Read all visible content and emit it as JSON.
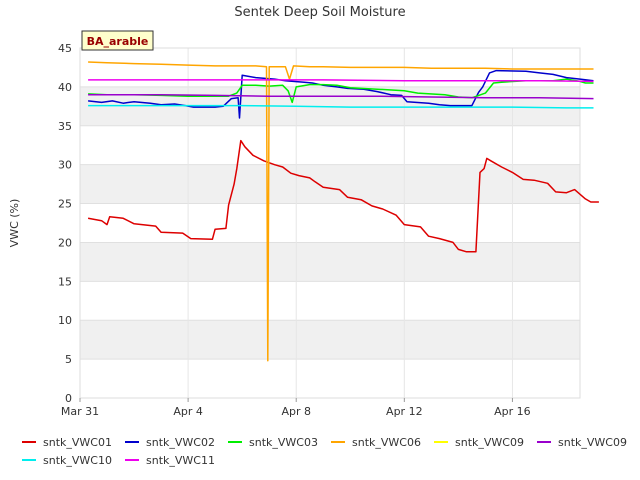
{
  "chart_data": {
    "type": "line",
    "title": "Sentek Deep Soil Moisture",
    "ylabel": "VWC (%)",
    "xlabel": "",
    "site_label": "BA_arable",
    "ylim": [
      0,
      45
    ],
    "yticks": [
      0,
      5,
      10,
      15,
      20,
      25,
      30,
      35,
      40,
      45
    ],
    "xlim": [
      0,
      18.5
    ],
    "xticks": [
      {
        "x": 0,
        "label": "Mar 31"
      },
      {
        "x": 4,
        "label": "Apr 4"
      },
      {
        "x": 8,
        "label": "Apr 8"
      },
      {
        "x": 12,
        "label": "Apr 12"
      },
      {
        "x": 16,
        "label": "Apr 16"
      }
    ],
    "x_unit_note": "days since Mar 31",
    "grid": true,
    "legend_position": "bottom",
    "series": [
      {
        "name": "sntk_VWC01",
        "color": "#dd0000",
        "points": [
          [
            0.3,
            23.1
          ],
          [
            0.8,
            22.8
          ],
          [
            1.0,
            22.3
          ],
          [
            1.1,
            23.3
          ],
          [
            1.6,
            23.1
          ],
          [
            2.0,
            22.4
          ],
          [
            2.8,
            22.1
          ],
          [
            3.0,
            21.3
          ],
          [
            3.8,
            21.2
          ],
          [
            4.1,
            20.5
          ],
          [
            4.9,
            20.4
          ],
          [
            5.0,
            21.7
          ],
          [
            5.4,
            21.8
          ],
          [
            5.5,
            24.8
          ],
          [
            5.7,
            27.5
          ],
          [
            5.8,
            29.5
          ],
          [
            5.95,
            33.1
          ],
          [
            6.1,
            32.3
          ],
          [
            6.4,
            31.2
          ],
          [
            6.8,
            30.5
          ],
          [
            7.2,
            30.0
          ],
          [
            7.5,
            29.7
          ],
          [
            7.8,
            28.9
          ],
          [
            8.1,
            28.6
          ],
          [
            8.5,
            28.3
          ],
          [
            8.7,
            27.8
          ],
          [
            9.0,
            27.1
          ],
          [
            9.6,
            26.8
          ],
          [
            9.9,
            25.8
          ],
          [
            10.4,
            25.5
          ],
          [
            10.8,
            24.7
          ],
          [
            11.2,
            24.3
          ],
          [
            11.7,
            23.5
          ],
          [
            12.0,
            22.3
          ],
          [
            12.6,
            22.0
          ],
          [
            12.9,
            20.8
          ],
          [
            13.3,
            20.5
          ],
          [
            13.8,
            20.0
          ],
          [
            14.0,
            19.1
          ],
          [
            14.3,
            18.8
          ],
          [
            14.65,
            18.8
          ],
          [
            14.8,
            29.0
          ],
          [
            14.95,
            29.5
          ],
          [
            15.05,
            30.8
          ],
          [
            15.2,
            30.5
          ],
          [
            15.6,
            29.7
          ],
          [
            16.0,
            29.0
          ],
          [
            16.4,
            28.1
          ],
          [
            16.8,
            28.0
          ],
          [
            17.3,
            27.6
          ],
          [
            17.6,
            26.5
          ],
          [
            18.0,
            26.4
          ],
          [
            18.3,
            26.8
          ],
          [
            18.7,
            25.6
          ],
          [
            18.9,
            25.2
          ],
          [
            19.2,
            25.2
          ]
        ]
      },
      {
        "name": "sntk_VWC02",
        "color": "#0000cc",
        "points": [
          [
            0.3,
            38.2
          ],
          [
            0.8,
            38.0
          ],
          [
            1.2,
            38.2
          ],
          [
            1.6,
            37.9
          ],
          [
            2.0,
            38.1
          ],
          [
            2.6,
            37.9
          ],
          [
            3.0,
            37.7
          ],
          [
            3.5,
            37.8
          ],
          [
            3.9,
            37.6
          ],
          [
            4.2,
            37.4
          ],
          [
            5.0,
            37.4
          ],
          [
            5.3,
            37.5
          ],
          [
            5.6,
            38.5
          ],
          [
            5.85,
            38.6
          ],
          [
            5.9,
            36.0
          ],
          [
            6.0,
            41.5
          ],
          [
            6.5,
            41.2
          ],
          [
            7.2,
            41.0
          ],
          [
            7.6,
            40.8
          ],
          [
            8.3,
            40.6
          ],
          [
            8.6,
            40.5
          ],
          [
            9.0,
            40.2
          ],
          [
            9.5,
            40.0
          ],
          [
            9.9,
            39.8
          ],
          [
            10.5,
            39.7
          ],
          [
            11.0,
            39.4
          ],
          [
            11.5,
            39.0
          ],
          [
            11.9,
            38.9
          ],
          [
            12.1,
            38.1
          ],
          [
            12.9,
            37.9
          ],
          [
            13.3,
            37.7
          ],
          [
            13.7,
            37.6
          ],
          [
            14.5,
            37.6
          ],
          [
            14.75,
            39.3
          ],
          [
            14.9,
            40.0
          ],
          [
            15.15,
            41.8
          ],
          [
            15.4,
            42.1
          ],
          [
            16.5,
            42.0
          ],
          [
            17.0,
            41.8
          ],
          [
            17.5,
            41.6
          ],
          [
            18.0,
            41.2
          ],
          [
            18.5,
            41.0
          ],
          [
            19.0,
            40.8
          ]
        ]
      },
      {
        "name": "sntk_VWC03",
        "color": "#00ee00",
        "points": [
          [
            0.3,
            39.1
          ],
          [
            1.0,
            39.0
          ],
          [
            2.0,
            39.0
          ],
          [
            3.0,
            38.9
          ],
          [
            4.0,
            38.8
          ],
          [
            5.5,
            38.8
          ],
          [
            5.8,
            39.2
          ],
          [
            6.0,
            40.2
          ],
          [
            6.5,
            40.2
          ],
          [
            7.0,
            40.1
          ],
          [
            7.5,
            40.2
          ],
          [
            7.7,
            39.5
          ],
          [
            7.85,
            38.0
          ],
          [
            8.0,
            40.0
          ],
          [
            8.5,
            40.3
          ],
          [
            9.0,
            40.3
          ],
          [
            9.5,
            40.2
          ],
          [
            10.0,
            39.9
          ],
          [
            11.0,
            39.7
          ],
          [
            12.0,
            39.5
          ],
          [
            12.5,
            39.2
          ],
          [
            13.5,
            39.0
          ],
          [
            14.0,
            38.7
          ],
          [
            14.5,
            38.6
          ],
          [
            15.0,
            39.2
          ],
          [
            15.3,
            40.5
          ],
          [
            15.6,
            40.6
          ],
          [
            16.5,
            40.8
          ],
          [
            17.5,
            40.8
          ],
          [
            18.0,
            41.0
          ],
          [
            18.5,
            40.7
          ],
          [
            18.7,
            40.5
          ],
          [
            19.0,
            40.5
          ]
        ]
      },
      {
        "name": "sntk_VWC06",
        "color": "#ffa500",
        "points": [
          [
            0.3,
            43.2
          ],
          [
            1.0,
            43.1
          ],
          [
            2.0,
            43.0
          ],
          [
            3.0,
            42.9
          ],
          [
            4.0,
            42.8
          ],
          [
            5.0,
            42.7
          ],
          [
            6.5,
            42.7
          ],
          [
            6.9,
            42.6
          ],
          [
            6.95,
            4.8
          ],
          [
            7.0,
            42.6
          ],
          [
            7.6,
            42.6
          ],
          [
            7.75,
            41.0
          ],
          [
            7.9,
            42.7
          ],
          [
            8.5,
            42.6
          ],
          [
            9.0,
            42.6
          ],
          [
            10.0,
            42.5
          ],
          [
            11.0,
            42.5
          ],
          [
            12.0,
            42.5
          ],
          [
            13.0,
            42.4
          ],
          [
            14.0,
            42.4
          ],
          [
            15.0,
            42.4
          ],
          [
            16.0,
            42.3
          ],
          [
            17.0,
            42.3
          ],
          [
            18.0,
            42.3
          ],
          [
            19.0,
            42.3
          ]
        ]
      },
      {
        "name": "sntk_VWC09",
        "color": "#ffff00",
        "points": []
      },
      {
        "name": "sntk_VWC09",
        "color": "#9900cc",
        "points": [
          [
            0.3,
            39.0
          ],
          [
            3.0,
            39.0
          ],
          [
            5.0,
            38.9
          ],
          [
            7.0,
            38.8
          ],
          [
            9.0,
            38.8
          ],
          [
            11.0,
            38.8
          ],
          [
            13.0,
            38.7
          ],
          [
            15.0,
            38.6
          ],
          [
            17.0,
            38.6
          ],
          [
            19.0,
            38.5
          ]
        ]
      },
      {
        "name": "sntk_VWC10",
        "color": "#00eeee",
        "points": [
          [
            0.3,
            37.6
          ],
          [
            2.0,
            37.6
          ],
          [
            4.0,
            37.6
          ],
          [
            6.0,
            37.6
          ],
          [
            8.0,
            37.5
          ],
          [
            10.0,
            37.4
          ],
          [
            12.0,
            37.4
          ],
          [
            14.0,
            37.4
          ],
          [
            16.0,
            37.4
          ],
          [
            18.0,
            37.3
          ],
          [
            19.0,
            37.3
          ]
        ]
      },
      {
        "name": "sntk_VWC11",
        "color": "#ee00ee",
        "points": [
          [
            0.3,
            40.9
          ],
          [
            3.0,
            40.9
          ],
          [
            6.0,
            40.9
          ],
          [
            9.0,
            40.9
          ],
          [
            12.0,
            40.8
          ],
          [
            15.0,
            40.8
          ],
          [
            17.0,
            40.8
          ],
          [
            19.0,
            40.7
          ]
        ]
      }
    ]
  }
}
